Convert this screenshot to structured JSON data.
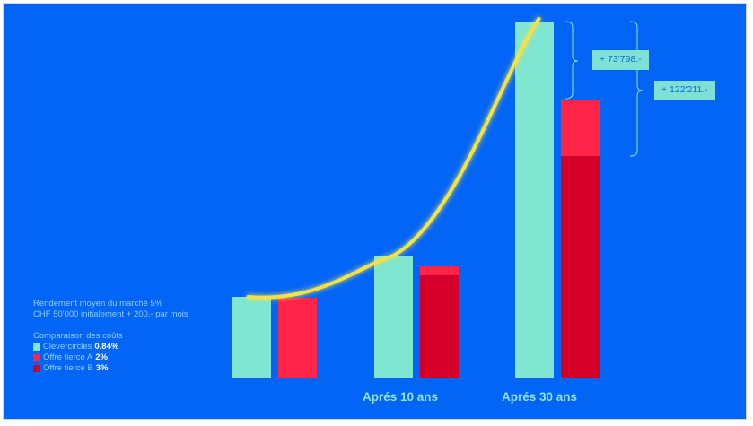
{
  "info": {
    "line1": "Rendement moyen du marché 5%",
    "line2": "CHF 50'000 initialement + 200.- par mois",
    "legend_title": "Comparaison des coûts"
  },
  "legend": [
    {
      "name": "Clevercircles",
      "value": "0.84%",
      "color": "#7fe6d2"
    },
    {
      "name": "Offre tierce A",
      "value": "2%",
      "color": "#ff2448"
    },
    {
      "name": "Offre tierce B",
      "value": "3%",
      "color": "#d4002a"
    }
  ],
  "period_labels": [
    "Aprés 10 ans",
    "Aprés 30 ans"
  ],
  "differences": {
    "a": "+ 73'798.-",
    "b": "+ 122'211.-"
  },
  "chart_data": {
    "type": "bar",
    "categories": [
      "",
      "Aprés 10 ans",
      "Aprés 30 ans"
    ],
    "series": [
      {
        "name": "Clevercircles",
        "color": "#7fe6d2",
        "values": [
          90,
          136,
          396
        ]
      },
      {
        "name": "Offre tierce A",
        "color": "#ff2448",
        "values": [
          89,
          124,
          309
        ]
      },
      {
        "name": "Offre tierce B",
        "color": "#d4002a",
        "values": [
          null,
          114,
          247
        ]
      }
    ],
    "trend_line": {
      "color": "#f2e24a"
    },
    "title": "",
    "xlabel": "",
    "ylabel": "",
    "grid": false
  }
}
